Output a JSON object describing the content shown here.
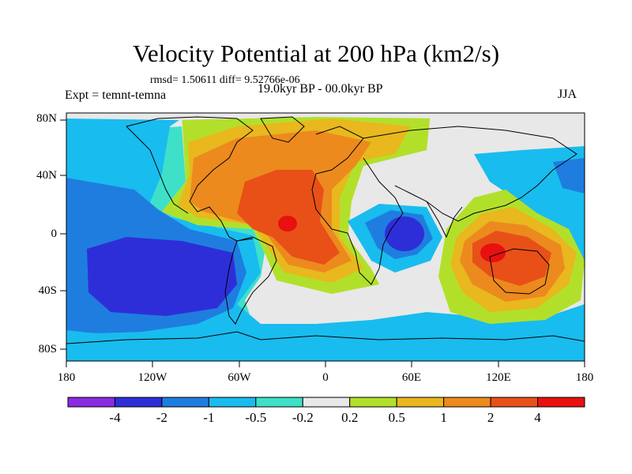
{
  "header": {
    "title": "Velocity Potential at 200 hPa (km2/s)",
    "stats": "rmsd= 1.50611 diff= 9.52766e-06",
    "experiment": "Expt = temnt-temna",
    "period": "19.0kyr BP - 00.0kyr BP",
    "season": "JJA"
  },
  "axes": {
    "y_ticks": [
      "80N",
      "40N",
      "0",
      "40S",
      "80S"
    ],
    "x_ticks": [
      "180",
      "120W",
      "60W",
      "0",
      "60E",
      "120E",
      "180"
    ]
  },
  "colorbar": {
    "colors": [
      "#8a2be2",
      "#2e2ed8",
      "#1f7de0",
      "#19bcee",
      "#3fe0c8",
      "#e8e8e8",
      "#b2e02a",
      "#e8b81e",
      "#ec8a1e",
      "#e85018",
      "#e81010"
    ],
    "labels": [
      "-4",
      "-2",
      "-1",
      "-0.5",
      "-0.2",
      "0.2",
      "0.5",
      "1",
      "2",
      "4"
    ]
  }
}
